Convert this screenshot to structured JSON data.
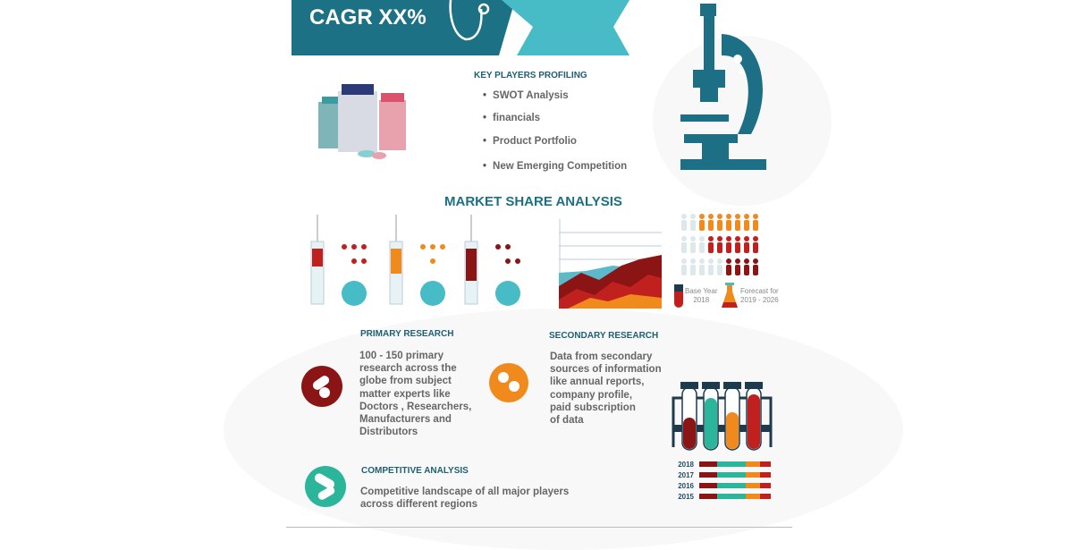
{
  "banner": {
    "title": "CAGR XX%",
    "colors": {
      "dark": "#1d7185",
      "light": "#47bcc6"
    }
  },
  "key_players": {
    "heading": "KEY PLAYERS PROFILING",
    "items": [
      "SWOT Analysis",
      "financials",
      "Product Portfolio",
      "New Emerging Competition"
    ]
  },
  "market_share": {
    "heading": "MARKET SHARE ANALYSIS",
    "legend": {
      "base_year": "Base Year",
      "base_year_value": "2018",
      "forecast": "Forecast for",
      "forecast_value": "2019 - 2026"
    }
  },
  "primary": {
    "heading": "PRIMARY RESEARCH",
    "lines": [
      "100 - 150 primary",
      "research across the",
      "globe from subject",
      "matter experts like",
      "Doctors , Researchers,",
      "Manufacturers and",
      "Distributors"
    ]
  },
  "secondary": {
    "heading": "SECONDARY RESEARCH",
    "lines": [
      "Data from secondary",
      "sources of information",
      "like annual reports,",
      "company profile,",
      "paid subscription",
      "of data"
    ]
  },
  "competitive": {
    "heading": "COMPETITIVE ANALYSIS",
    "lines": [
      "Competitive landscape of all major players",
      "across different regions"
    ]
  },
  "years": [
    "2018",
    "2017",
    "2016",
    "2015"
  ],
  "colors": {
    "teal": "#1d6f85",
    "red": "#c0201e",
    "darkred": "#8b1414",
    "orange": "#f08a1c",
    "green": "#2bb59a"
  }
}
